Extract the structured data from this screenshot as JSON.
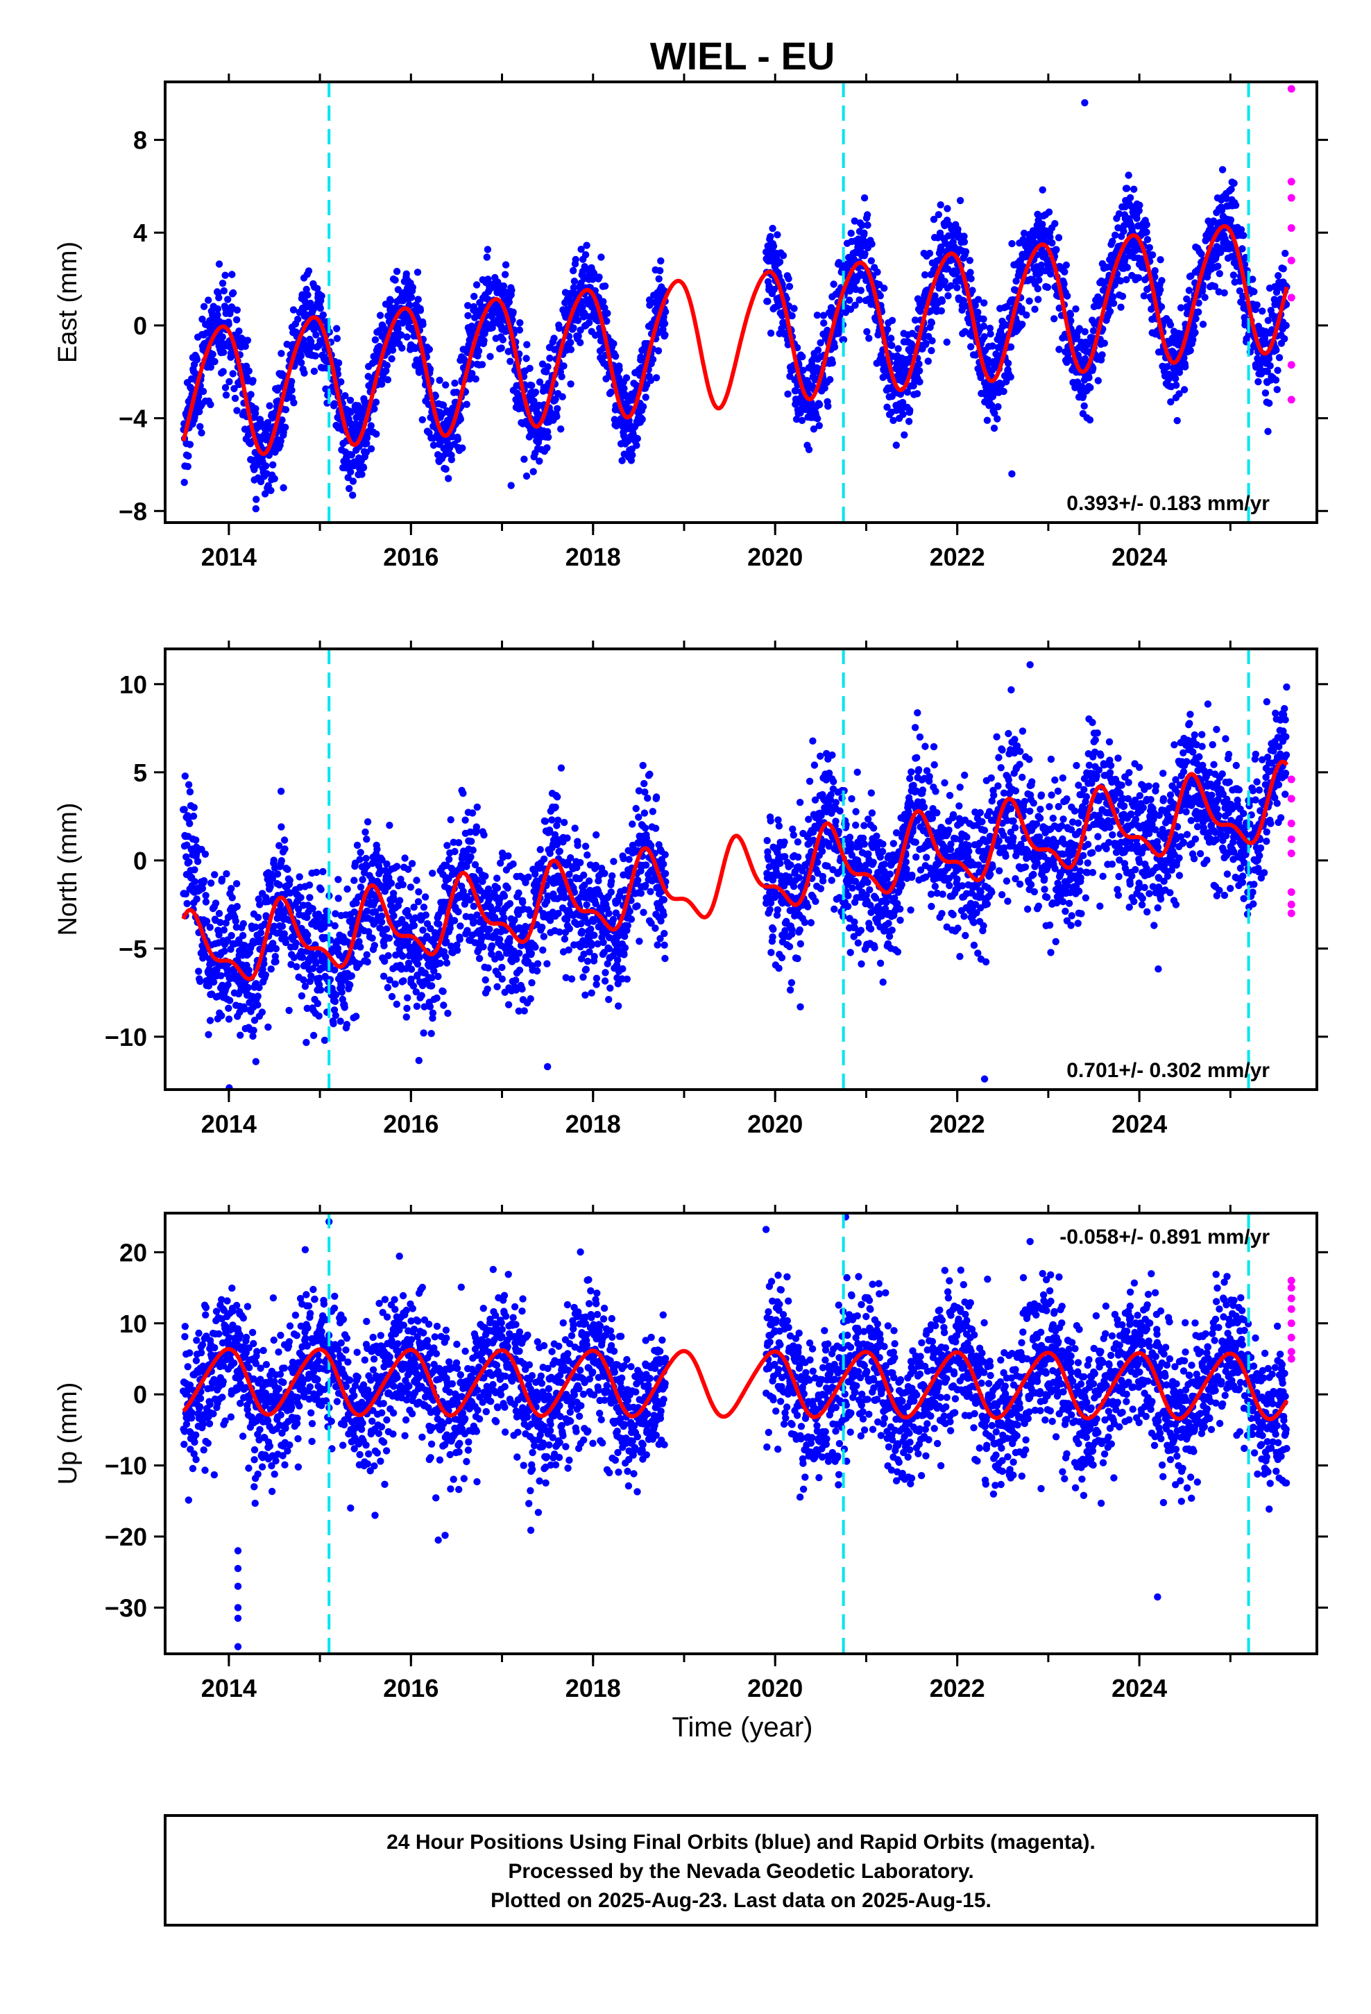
{
  "title": "WIEL - EU",
  "x_axis_label": "Time (year)",
  "footer": {
    "line1": "24 Hour Positions Using Final Orbits (blue) and Rapid Orbits (magenta).",
    "line2": "Processed by the Nevada Geodetic Laboratory.",
    "line3": "Plotted on 2025-Aug-23. Last data on 2025-Aug-15."
  },
  "colors": {
    "final_orbits": "#0000ff",
    "rapid_orbits": "#ff00ff",
    "model": "#ff0000",
    "events": "#00e5ee"
  },
  "chart_data": [
    {
      "type": "scatter",
      "component": "East",
      "ylabel": "East (mm)",
      "rate_label": "0.393+/- 0.183 mm/yr",
      "xlim": [
        2013.3,
        2025.95
      ],
      "ylim": [
        -8.5,
        10.5
      ],
      "x_ticks": [
        2014,
        2016,
        2018,
        2020,
        2022,
        2024
      ],
      "y_ticks": [
        8,
        4,
        0,
        -4,
        -8
      ],
      "event_lines": [
        2015.1,
        2020.75,
        2025.2
      ],
      "data_range": [
        2013.5,
        2025.62
      ],
      "gap": [
        2018.8,
        2019.9
      ],
      "model": {
        "rate": 0.393,
        "intercept": -0.3,
        "annual_amp": 2.8,
        "annual_phase": 2.2,
        "semiannual_amp": 0.3,
        "semiannual_phase": 0.5,
        "start_value": -1.2
      },
      "noise_sd": 1.0,
      "outliers": [
        [
          2014.6,
          -7.0
        ],
        [
          2022.6,
          -6.4
        ],
        [
          2023.4,
          9.6
        ],
        [
          2014.3,
          -7.5
        ],
        [
          2017.1,
          -6.9
        ]
      ],
      "rapid_points": [
        [
          2025.67,
          10.2
        ],
        [
          2025.67,
          6.2
        ],
        [
          2025.67,
          5.5
        ],
        [
          2025.67,
          4.2
        ],
        [
          2025.67,
          2.8
        ],
        [
          2025.67,
          1.2
        ],
        [
          2025.67,
          -1.7
        ],
        [
          2025.67,
          -3.2
        ]
      ]
    },
    {
      "type": "scatter",
      "component": "North",
      "ylabel": "North (mm)",
      "rate_label": "0.701+/- 0.302 mm/yr",
      "xlim": [
        2013.3,
        2025.95
      ],
      "ylim": [
        -13,
        12
      ],
      "x_ticks": [
        2014,
        2016,
        2018,
        2020,
        2022,
        2024
      ],
      "y_ticks": [
        10,
        5,
        0,
        -5,
        -10
      ],
      "event_lines": [
        2015.1,
        2020.75,
        2025.2
      ],
      "data_range": [
        2013.5,
        2025.62
      ],
      "gap": [
        2018.8,
        2019.9
      ],
      "model": {
        "rate": 0.701,
        "intercept": -0.8,
        "annual_amp": 1.8,
        "annual_phase": 4.0,
        "semiannual_amp": 0.8,
        "semiannual_phase": 1.0,
        "start_value": 4.5
      },
      "noise_sd": 2.0,
      "outliers": [
        [
          2022.8,
          11.1
        ],
        [
          2022.3,
          -12.4
        ],
        [
          2017.5,
          -11.7
        ],
        [
          2025.4,
          9.0
        ]
      ],
      "rapid_points": [
        [
          2025.67,
          4.6
        ],
        [
          2025.67,
          3.5
        ],
        [
          2025.67,
          2.1
        ],
        [
          2025.67,
          1.2
        ],
        [
          2025.67,
          0.4
        ],
        [
          2025.67,
          -1.8
        ],
        [
          2025.67,
          -2.5
        ],
        [
          2025.67,
          -3.0
        ]
      ]
    },
    {
      "type": "scatter",
      "component": "Up",
      "ylabel": "Up (mm)",
      "rate_label": "-0.058+/- 0.891 mm/yr",
      "xlim": [
        2013.3,
        2025.95
      ],
      "ylim": [
        -36.5,
        25.5
      ],
      "x_ticks": [
        2014,
        2016,
        2018,
        2020,
        2022,
        2024
      ],
      "y_ticks": [
        20,
        10,
        0,
        -10,
        -20,
        -30
      ],
      "event_lines": [
        2015.1,
        2020.75,
        2025.2
      ],
      "data_range": [
        2013.5,
        2025.62
      ],
      "gap": [
        2018.8,
        2019.9
      ],
      "model": {
        "rate": -0.058,
        "intercept": 1.5,
        "annual_amp": 4.5,
        "annual_phase": 1.8,
        "semiannual_amp": 0.5,
        "semiannual_phase": 0.3,
        "start_value": 3.0
      },
      "noise_sd": 5.0,
      "outliers": [
        [
          2014.1,
          -35.5
        ],
        [
          2014.1,
          -31.5
        ],
        [
          2014.1,
          -30.0
        ],
        [
          2014.1,
          -27.0
        ],
        [
          2014.1,
          -24.5
        ],
        [
          2014.1,
          -22.0
        ],
        [
          2015.1,
          24.3
        ],
        [
          2019.9,
          23.2
        ],
        [
          2024.2,
          -28.5
        ],
        [
          2016.3,
          -20.5
        ],
        [
          2022.8,
          21.5
        ]
      ],
      "rapid_points": [
        [
          2025.67,
          16.0
        ],
        [
          2025.67,
          15.0
        ],
        [
          2025.67,
          13.5
        ],
        [
          2025.67,
          12.0
        ],
        [
          2025.67,
          10.0
        ],
        [
          2025.67,
          8.0
        ],
        [
          2025.67,
          6.0
        ],
        [
          2025.67,
          5.0
        ]
      ]
    }
  ]
}
